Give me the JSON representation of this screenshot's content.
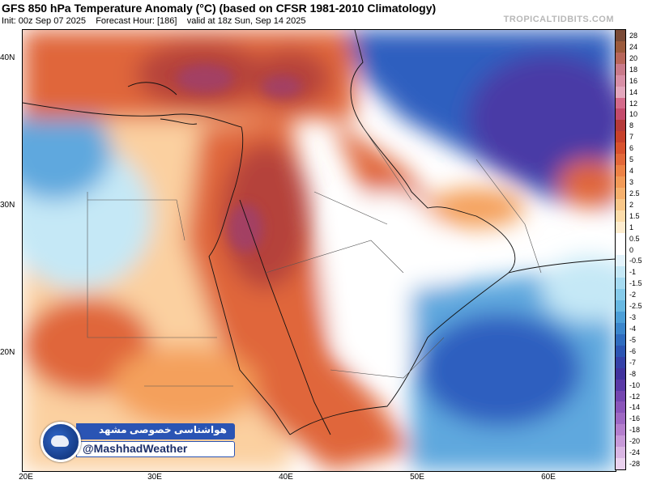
{
  "header": {
    "title": "GFS 850 hPa Temperature Anomaly (°C) (based on CFSR 1981-2010 Climatology)",
    "init": "Init: 00z Sep 07 2025",
    "forecast_hour": "Forecast Hour: [186]",
    "valid": "valid at 18z Sun, Sep 14 2025",
    "brand": "TROPICALTIDBITS.COM"
  },
  "axes": {
    "lat_labels": [
      "40N",
      "30N",
      "20N"
    ],
    "lon_labels": [
      "20E",
      "30E",
      "40E",
      "50E",
      "60E"
    ]
  },
  "colorbar": {
    "labels": [
      "28",
      "24",
      "20",
      "18",
      "16",
      "14",
      "12",
      "10",
      "8",
      "7",
      "6",
      "5",
      "4",
      "3",
      "2.5",
      "2",
      "1.5",
      "1",
      "0.5",
      "0",
      "-0.5",
      "-1",
      "-1.5",
      "-2",
      "-2.5",
      "-3",
      "-4",
      "-5",
      "-6",
      "-7",
      "-8",
      "-10",
      "-12",
      "-14",
      "-16",
      "-18",
      "-20",
      "-24",
      "-28"
    ],
    "colors": [
      "#7a4a36",
      "#9b5a3c",
      "#b8665a",
      "#c97a8a",
      "#d88fa6",
      "#e3a7bd",
      "#d46a8a",
      "#c44b6c",
      "#b53a3a",
      "#c7412c",
      "#d8522e",
      "#e3683a",
      "#ed8246",
      "#f29a57",
      "#f6b06d",
      "#f9c789",
      "#fcdcaa",
      "#fdeccf",
      "#ffffff",
      "#ffffff",
      "#e3f3fb",
      "#c5e8f6",
      "#a6dbf1",
      "#86cbea",
      "#67b8e2",
      "#4c9fd8",
      "#3b86cc",
      "#2f6cbf",
      "#2c55b3",
      "#3541a8",
      "#41339e",
      "#5a3aa6",
      "#7446b0",
      "#8a55ba",
      "#9e68c3",
      "#b47fcd",
      "#c79ad8",
      "#d9b6e3",
      "#ead2ee"
    ]
  },
  "watermark": {
    "persian_text": "هواشناسی خصوصی مشهد",
    "handle": "@MashhadWeather"
  },
  "colors": {
    "hot_dark": "#b5423a",
    "hot": "#e0663a",
    "warm": "#f4a05c",
    "warm_light": "#fbd0a0",
    "neutral": "#ffffff",
    "cool_light": "#c5e8f6",
    "cool": "#5fa8de",
    "cold": "#2f5fbf",
    "very_cold": "#4a3aa6",
    "extreme_hot": "#a0406a"
  }
}
